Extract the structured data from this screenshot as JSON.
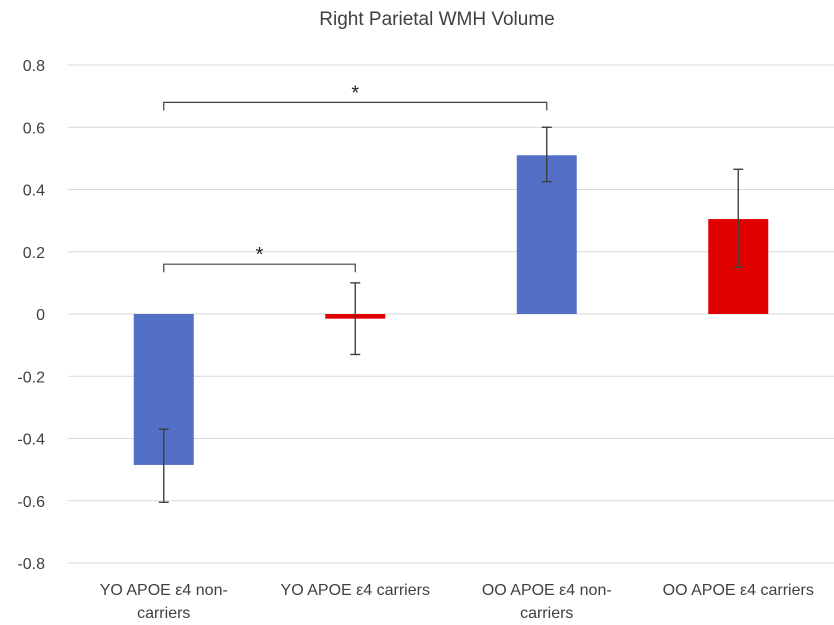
{
  "chart_data": {
    "type": "bar",
    "title": "Right Parietal WMH Volume",
    "categories": [
      [
        "YO APOE ε4 non-",
        "carriers"
      ],
      [
        "YO APOE ε4 carriers"
      ],
      [
        "OO APOE ε4 non-",
        "carriers"
      ],
      [
        "OO APOE ε4 carriers"
      ]
    ],
    "values": [
      -0.485,
      -0.015,
      0.51,
      0.305
    ],
    "error_low": [
      -0.605,
      -0.13,
      0.425,
      0.15
    ],
    "error_high": [
      -0.37,
      0.1,
      0.6,
      0.465
    ],
    "bar_colors": [
      "#5470c6",
      "#e00000",
      "#5470c6",
      "#e00000"
    ],
    "ylim": [
      -0.8,
      0.8
    ],
    "yticks": [
      0.8,
      0.6,
      0.4,
      0.2,
      0,
      -0.2,
      -0.4,
      -0.6,
      -0.8
    ],
    "ytick_labels": [
      "0.8",
      "0.6",
      "0.4",
      "0.2",
      "0",
      "-0.2",
      "-0.4",
      "-0.6",
      "-0.8"
    ],
    "grid": true,
    "significance": [
      {
        "from": 0,
        "to": 2,
        "label": "*",
        "y": 0.68
      },
      {
        "from": 0,
        "to": 1,
        "label": "*",
        "y": 0.16
      }
    ]
  }
}
